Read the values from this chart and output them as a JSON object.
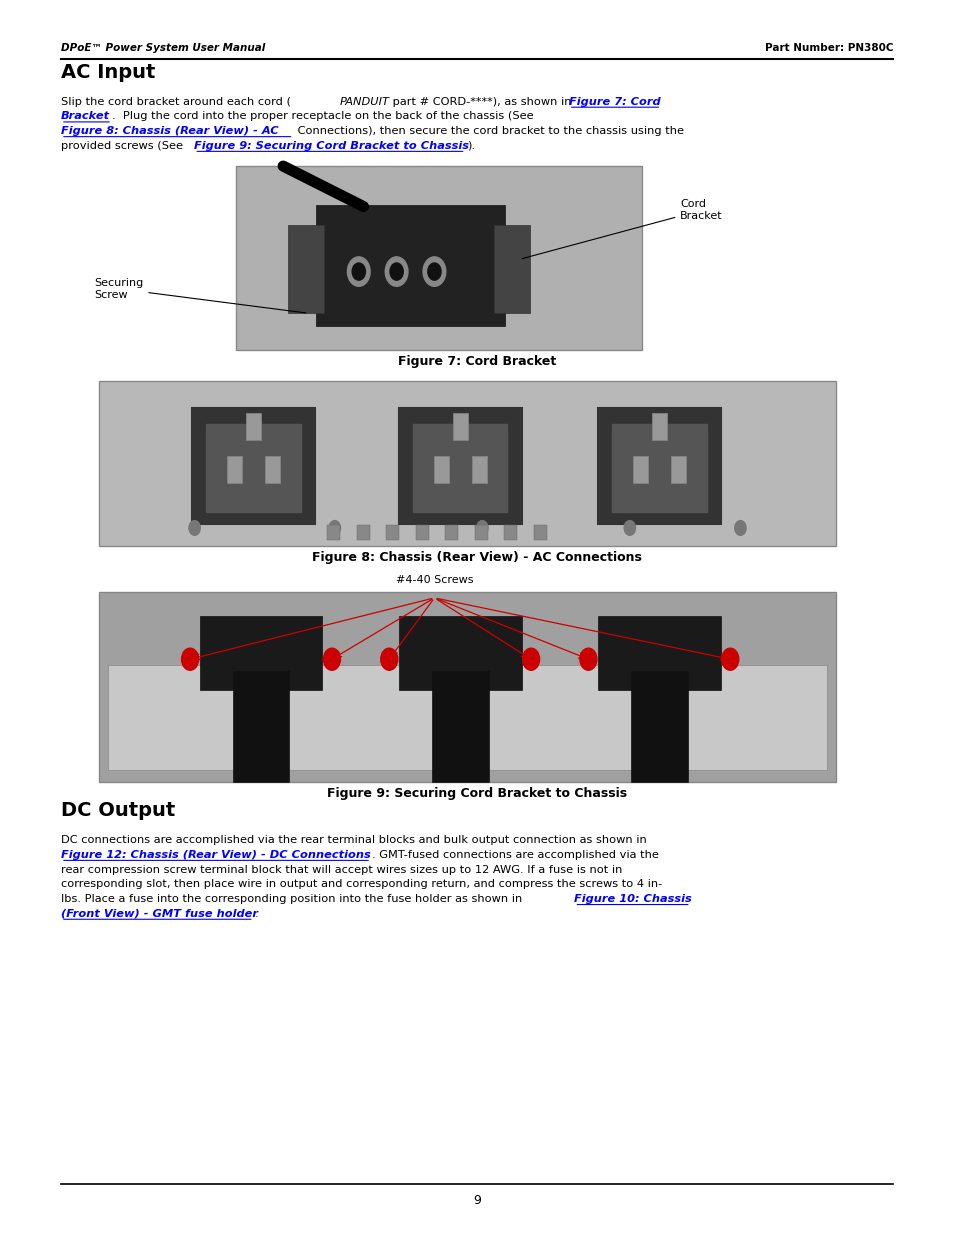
{
  "page_width": 9.54,
  "page_height": 12.35,
  "bg_color": "#ffffff",
  "header_left": "DPoE™ Power System User Manual",
  "header_right": "Part Number: PN380C",
  "title_ac": "AC Input",
  "fig7_caption": "Figure 7: Cord Bracket",
  "fig8_caption": "Figure 8: Chassis (Rear View) - AC Connections",
  "fig9_caption": "Figure 9: Securing Cord Bracket to Chassis",
  "fig9_label": "#4-40 Screws",
  "title_dc": "DC Output",
  "page_number": "9",
  "link_color": "#0000ff",
  "text_color": "#000000",
  "header_color": "#000000"
}
